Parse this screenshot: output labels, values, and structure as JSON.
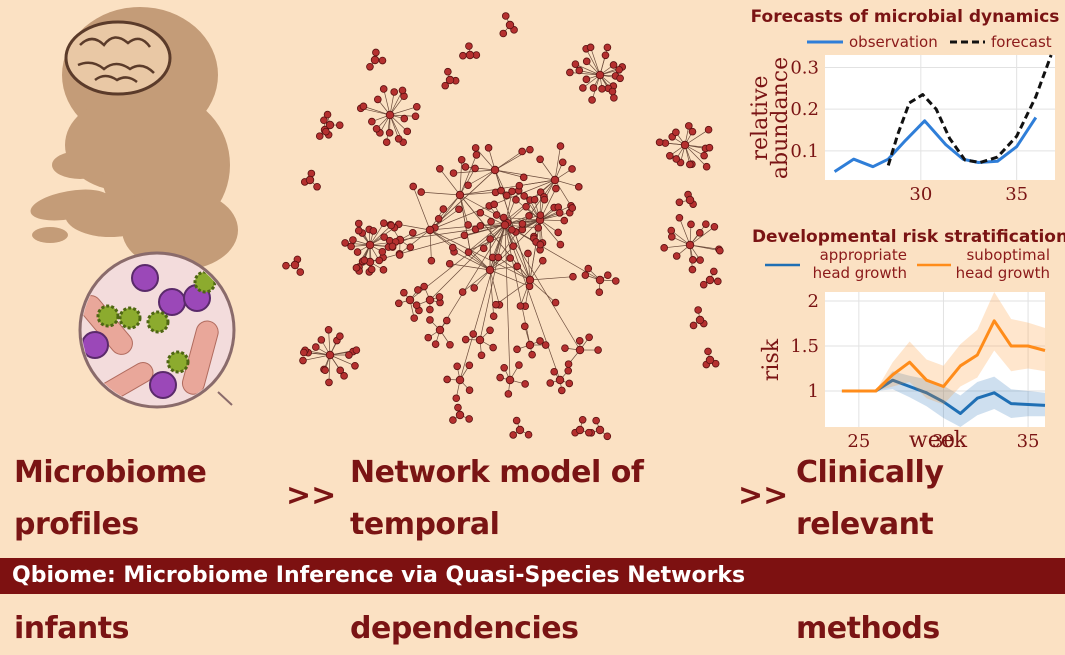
{
  "panels": {
    "left": {
      "line1": "Microbiome profiles",
      "line2": "in preterm infants"
    },
    "middle": {
      "line1": "Network model of temporal",
      "line2": "ecosystem dependencies"
    },
    "right": {
      "line1": "Clinically relevant",
      "line2": "predictive methods"
    },
    "arrow": ">>"
  },
  "footer": {
    "title": "Qbiome: Microbiome Inference via Quasi-Species Networks"
  },
  "icons": [
    "fetus-silhouette-icon",
    "brain-icon",
    "microbes-magnifier-icon",
    "network-graph-icon"
  ],
  "colors": {
    "accent": "#7d1111",
    "background": "#fbe1c3",
    "observation": "#2f7ed8",
    "forecast": "#111111",
    "appropriate": "#1f6fb4",
    "suboptimal": "#ff8c1a"
  },
  "chart_data": [
    {
      "type": "line",
      "title": "Forecasts of microbial dynamics",
      "ylabel": "relative abundance",
      "xlabel": "",
      "xlim": [
        25,
        37
      ],
      "ylim": [
        0.03,
        0.33
      ],
      "xticks": [
        "30",
        "35"
      ],
      "yticks": [
        "0.1",
        "0.2",
        "0.3"
      ],
      "legend_position": "top",
      "grid": true,
      "series": [
        {
          "name": "observation",
          "style": "solid",
          "x": [
            25.5,
            26.5,
            27.5,
            28.3,
            29.2,
            30.2,
            31.3,
            32.2,
            33,
            34,
            35,
            36
          ],
          "y": [
            0.05,
            0.08,
            0.062,
            0.08,
            0.125,
            0.172,
            0.115,
            0.08,
            0.072,
            0.075,
            0.11,
            0.18
          ]
        },
        {
          "name": "forecast",
          "style": "dashed",
          "x": [
            28.3,
            28.8,
            29.4,
            30.1,
            30.8,
            31.5,
            32.3,
            33.1,
            34,
            35,
            36,
            36.8
          ],
          "y": [
            0.065,
            0.14,
            0.215,
            0.235,
            0.2,
            0.13,
            0.078,
            0.072,
            0.085,
            0.135,
            0.23,
            0.33
          ]
        }
      ]
    },
    {
      "type": "line",
      "title": "Developmental risk stratification",
      "ylabel": "risk",
      "xlabel": "week",
      "xlim": [
        23,
        36
      ],
      "ylim": [
        0.6,
        2.1
      ],
      "xticks": [
        "25",
        "30",
        "35"
      ],
      "yticks": [
        "1",
        "1.5",
        "2"
      ],
      "legend_position": "top",
      "grid": true,
      "series": [
        {
          "name": "appropriate head growth",
          "x": [
            24,
            25,
            26,
            27,
            28,
            29,
            30,
            31,
            32,
            33,
            34,
            35,
            36
          ],
          "y": [
            1.0,
            1.0,
            1.0,
            1.12,
            1.05,
            0.98,
            0.88,
            0.75,
            0.92,
            0.98,
            0.86,
            0.85,
            0.84
          ],
          "band_low": [
            1.0,
            1.0,
            1.0,
            1.02,
            0.93,
            0.83,
            0.7,
            0.6,
            0.73,
            0.8,
            0.7,
            0.72,
            0.72
          ],
          "band_high": [
            1.0,
            1.0,
            1.0,
            1.22,
            1.17,
            1.13,
            1.06,
            0.95,
            1.1,
            1.16,
            1.02,
            1.0,
            0.98
          ]
        },
        {
          "name": "suboptimal head growth",
          "x": [
            24,
            25,
            26,
            27,
            28,
            29,
            30,
            31,
            32,
            33,
            34,
            35,
            36
          ],
          "y": [
            1.0,
            1.0,
            1.0,
            1.18,
            1.32,
            1.12,
            1.05,
            1.28,
            1.4,
            1.78,
            1.5,
            1.5,
            1.45
          ],
          "band_low": [
            1.0,
            1.0,
            1.0,
            1.05,
            1.1,
            0.92,
            0.85,
            1.05,
            1.15,
            1.45,
            1.22,
            1.25,
            1.22
          ],
          "band_high": [
            1.0,
            1.0,
            1.0,
            1.32,
            1.55,
            1.35,
            1.28,
            1.52,
            1.68,
            2.1,
            1.8,
            1.76,
            1.7
          ]
        }
      ]
    }
  ]
}
